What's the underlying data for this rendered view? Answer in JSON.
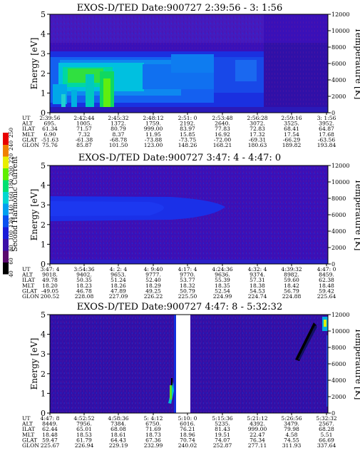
{
  "chart_data": [
    {
      "type": "heatmap",
      "title": "EXOS-D/TED   Date:900727  2:39:56 - 3: 1:56",
      "ylabel": "Energy [eV]",
      "ylabel_right": "Temperature [K]",
      "ylim": [
        0,
        5
      ],
      "ylim_right": [
        0,
        12000
      ],
      "yticks": [
        0,
        1,
        2,
        3,
        4,
        5
      ],
      "yticks_right": [
        0,
        2000,
        4000,
        6000,
        8000,
        10000,
        12000
      ],
      "orbit_rows": [
        "UT",
        "ALT",
        "ILAT",
        "MLT",
        "GLAT",
        "GLON"
      ],
      "orbit_columns": [
        [
          "2:39:56",
          "695.",
          "61.34",
          "6.90",
          "-51.63",
          "75.76"
        ],
        [
          "2:42:44",
          "1005.",
          "71.57",
          "7.32",
          "-61.38",
          "85.87"
        ],
        [
          "2:45:32",
          "1372.",
          "80.79",
          "8.37",
          "-68.78",
          "101.50"
        ],
        [
          "2:48:12",
          "1759.",
          "999.00",
          "11.95",
          "-73.88",
          "123.00"
        ],
        [
          "2:51: 0",
          "2192.",
          "83.97",
          "15.85",
          "-73.75",
          "148.26"
        ],
        [
          "2:53:48",
          "2640.",
          "77.83",
          "16.92",
          "-72.00",
          "168.21"
        ],
        [
          "2:56:28",
          "3072.",
          "72.83",
          "17.32",
          "-69.31",
          "180.63"
        ],
        [
          "2:59:16",
          "3525.",
          "68.41",
          "17.54",
          "-66.29",
          "189.82"
        ],
        [
          "3: 1:56",
          "3952.",
          "64.87",
          "17.68",
          "-63.56",
          "193.84"
        ]
      ],
      "intensity_profile": {
        "time_segments": [
          "2:39:56-2:45:32 green/cyan 1.5-2.7 eV",
          "2:45:32-2:56:28 blue-cyan 1.3-3 eV",
          "2:56:28-3:1:56 dark blue"
        ]
      }
    },
    {
      "type": "heatmap",
      "title": "EXOS-D/TED   Date:900727  3:47: 4 - 4:47: 0",
      "ylabel": "Energy [eV]",
      "ylabel_right": "Temperature [K]",
      "ylim": [
        0,
        5
      ],
      "ylim_right": [
        0,
        12000
      ],
      "yticks": [
        0,
        1,
        2,
        3,
        4,
        5
      ],
      "yticks_right": [
        0,
        2000,
        4000,
        6000,
        8000,
        10000,
        12000
      ],
      "orbit_rows": [
        "UT",
        "ALT",
        "ILAT",
        "MLT",
        "GLAT",
        "GLON"
      ],
      "orbit_columns": [
        [
          "3:47: 4",
          "9018.",
          "49.78",
          "18.20",
          "-49.05",
          "200.52"
        ],
        [
          "3:54:36",
          "9402.",
          "50.35",
          "18.23",
          "46.78",
          "228.08"
        ],
        [
          "4: 2: 4",
          "9653.",
          "51.24",
          "18.26",
          "47.89",
          "227.09"
        ],
        [
          "4: 9:40",
          "9777.",
          "52.40",
          "18.29",
          "49.25",
          "226.22"
        ],
        [
          "4:17: 4",
          "9770.",
          "53.77",
          "18.32",
          "50.79",
          "225.50"
        ],
        [
          "4:24:36",
          "9636.",
          "55.39",
          "18.35",
          "52.54",
          "224.99"
        ],
        [
          "4:32: 4",
          "9374.",
          "57.31",
          "18.38",
          "54.53",
          "224.74"
        ],
        [
          "4:39:32",
          "8982.",
          "59.60",
          "18.42",
          "56.79",
          "224.88"
        ],
        [
          "4:47: 0",
          "8459.",
          "62.38",
          "18.48",
          "59.42",
          "225.64"
        ]
      ]
    },
    {
      "type": "heatmap",
      "title": "EXOS-D/TED   Date:900727  4:47: 8 - 5:32:32",
      "ylabel": "Energy [eV]",
      "ylabel_right": "Temperature [K]",
      "ylim": [
        0,
        5
      ],
      "ylim_right": [
        0,
        12000
      ],
      "yticks": [
        0,
        1,
        2,
        3,
        4,
        5
      ],
      "yticks_right": [
        0,
        2000,
        4000,
        6000,
        8000,
        10000,
        12000
      ],
      "orbit_rows": [
        "UT",
        "ALT",
        "ILAT",
        "MLT",
        "GLAT",
        "GLON"
      ],
      "orbit_columns": [
        [
          "4:47: 8",
          "8449.",
          "62.44",
          "18.48",
          "59.47",
          "225.67"
        ],
        [
          "4:52:52",
          "7956.",
          "65.01",
          "18.53",
          "61.79",
          "226.94"
        ],
        [
          "4:58:36",
          "7384.",
          "68.08",
          "18.61",
          "64.43",
          "229.19"
        ],
        [
          "5: 4:12",
          "6750.",
          "71.69",
          "18.73",
          "67.36",
          "232.99"
        ],
        [
          "5:10: 0",
          "6016.",
          "76.21",
          "18.96",
          "70.74",
          "240.02"
        ],
        [
          "5:15:36",
          "5235.",
          "81.43",
          "19.51",
          "74.07",
          "252.87"
        ],
        [
          "5:21:12",
          "4392.",
          "999.00",
          "22.47",
          "76.34",
          "277.11"
        ],
        [
          "5:26:56",
          "3479.",
          "79.98",
          "4.58",
          "74.55",
          "311.93"
        ],
        [
          "5:32:32",
          "2567.",
          "68.28",
          "5.51",
          "66.69",
          "337.64"
        ]
      ]
    }
  ],
  "colorbar": {
    "label": "Second Harmonic Current",
    "ticks": [
      "40",
      "60",
      "80",
      "100",
      "120",
      "140",
      "160",
      "180",
      "200",
      "220",
      "240",
      "250"
    ],
    "colors": [
      "#000000",
      "#5a0a6e",
      "#3a10a8",
      "#1a1ad8",
      "#0a50f0",
      "#00a0f0",
      "#00d8d0",
      "#00e070",
      "#60ee00",
      "#e8ee00",
      "#f08000",
      "#e80000"
    ]
  }
}
